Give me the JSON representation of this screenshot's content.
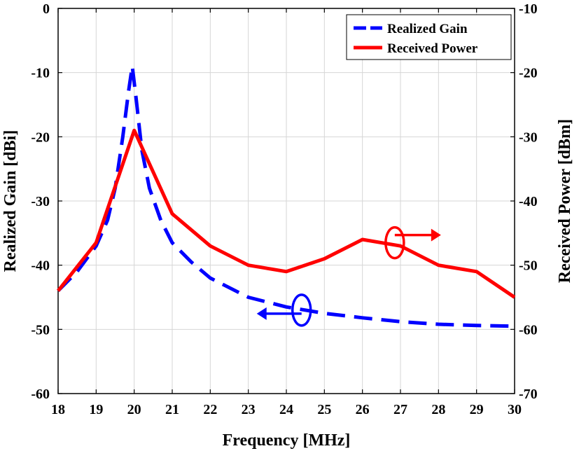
{
  "chart_data": {
    "type": "line",
    "xlabel": "Frequency [MHz]",
    "ylabel_left": "Realized Gain [dBi]",
    "ylabel_right": "Received Power [dBm]",
    "xlim": [
      18,
      30
    ],
    "ylim_left": [
      -60,
      0
    ],
    "ylim_right": [
      -70,
      -10
    ],
    "x_ticks": [
      18,
      19,
      20,
      21,
      22,
      23,
      24,
      25,
      26,
      27,
      28,
      29,
      30
    ],
    "y_ticks_left": [
      0,
      -10,
      -20,
      -30,
      -40,
      -50,
      -60
    ],
    "y_ticks_right": [
      -10,
      -20,
      -30,
      -40,
      -50,
      -60,
      -70
    ],
    "grid": true,
    "legend_position": "top-right",
    "series": [
      {
        "name": "Realized Gain",
        "axis": "left",
        "color": "#0000ff",
        "style": "dashed",
        "x": [
          18,
          18.5,
          19,
          19.3,
          19.5,
          19.7,
          19.85,
          19.95,
          20.05,
          20.2,
          20.4,
          20.7,
          21,
          21.5,
          22,
          23,
          24,
          25,
          26,
          27,
          28,
          29,
          30
        ],
        "y": [
          -44,
          -41,
          -37,
          -33,
          -28,
          -20,
          -13,
          -9,
          -14,
          -22,
          -28,
          -33,
          -36.5,
          -39.5,
          -42,
          -45,
          -46.5,
          -47.5,
          -48.2,
          -48.8,
          -49.2,
          -49.4,
          -49.5
        ]
      },
      {
        "name": "Received Power",
        "axis": "right",
        "color": "#ff0000",
        "style": "solid",
        "x": [
          18,
          19,
          20,
          21,
          22,
          23,
          24,
          25,
          26,
          27,
          28,
          29,
          30
        ],
        "y": [
          -54,
          -46.5,
          -29,
          -42,
          -47,
          -50,
          -51,
          -49,
          -46,
          -47,
          -50,
          -51,
          -55
        ]
      }
    ],
    "annotations": [
      {
        "type": "ellipse-arrow",
        "color": "#0000ff",
        "x": 24.4,
        "y_left": -47,
        "direction": "left"
      },
      {
        "type": "ellipse-arrow",
        "color": "#ff0000",
        "x": 26.85,
        "y_right": -46.5,
        "direction": "right"
      }
    ]
  }
}
